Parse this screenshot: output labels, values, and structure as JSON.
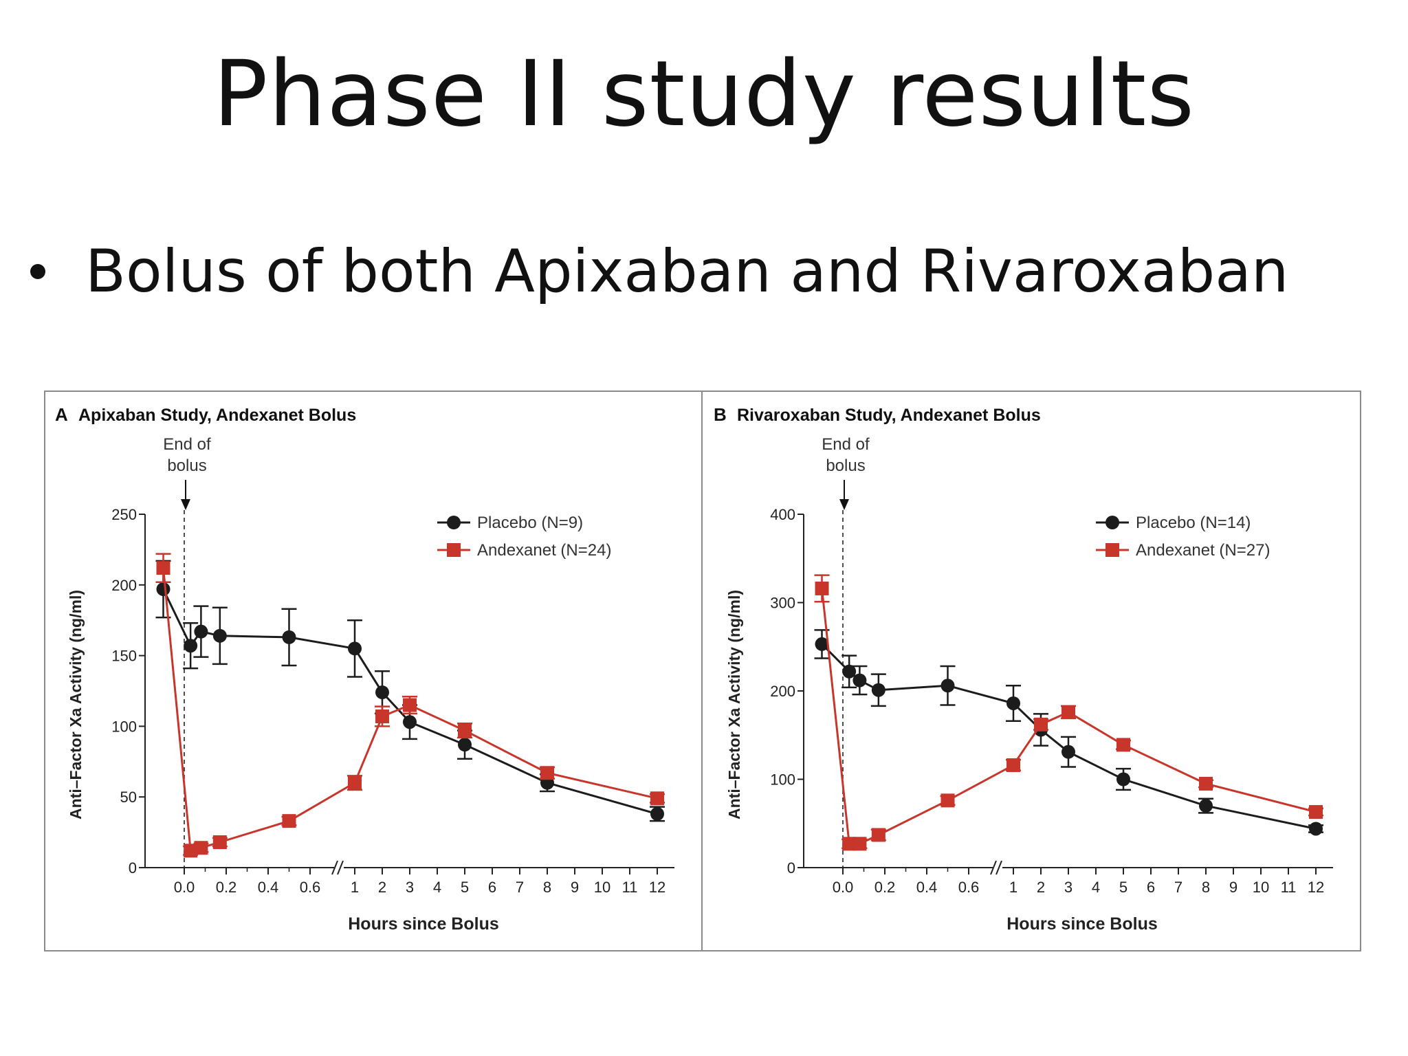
{
  "slide": {
    "title": "Phase II study results",
    "bullet": "Bolus of both Apixaban and Rivaroxaban"
  },
  "colors": {
    "placebo": "#1c1c1c",
    "andexanet": "#c8352b",
    "axis": "#222222",
    "frame": "#8a8a8a"
  },
  "chart_data": [
    {
      "type": "line",
      "panel_letter": "A",
      "title": "Apixaban Study, Andexanet Bolus",
      "annotation": "End of bolus",
      "annotation_lines": [
        "End of",
        "bolus"
      ],
      "xlabel": "Hours since Bolus",
      "ylabel": "Anti–Factor Xa Activity (ng/ml)",
      "ylim": [
        0,
        250
      ],
      "yticks": [
        0,
        50,
        100,
        150,
        200,
        250
      ],
      "xtick_labels": [
        "0.0",
        "0.2",
        "0.4",
        "0.6",
        "1",
        "2",
        "3",
        "4",
        "5",
        "6",
        "7",
        "8",
        "9",
        "10",
        "11",
        "12"
      ],
      "xtick_hours": [
        0,
        0.2,
        0.4,
        0.6,
        1,
        2,
        3,
        4,
        5,
        6,
        7,
        8,
        9,
        10,
        11,
        12
      ],
      "axis_break_hours": 0.75,
      "legend_position": "top-right",
      "series": [
        {
          "name": "Placebo (N=9)",
          "marker": "circle",
          "x": [
            -0.1,
            0.03,
            0.08,
            0.17,
            0.5,
            1,
            2,
            3,
            5,
            8,
            12
          ],
          "y": [
            197,
            157,
            167,
            164,
            163,
            155,
            124,
            103,
            87,
            60,
            38
          ],
          "err": [
            20,
            16,
            18,
            20,
            20,
            20,
            15,
            12,
            10,
            6,
            5
          ]
        },
        {
          "name": "Andexanet (N=24)",
          "marker": "square",
          "x": [
            -0.1,
            0.03,
            0.08,
            0.17,
            0.5,
            1,
            2,
            3,
            5,
            8,
            12
          ],
          "y": [
            212,
            12,
            14,
            18,
            33,
            60,
            107,
            115,
            97,
            67,
            49
          ],
          "err": [
            10,
            3,
            3,
            3,
            3,
            5,
            7,
            6,
            5,
            4,
            3
          ]
        }
      ]
    },
    {
      "type": "line",
      "panel_letter": "B",
      "title": "Rivaroxaban Study, Andexanet Bolus",
      "annotation": "End of bolus",
      "annotation_lines": [
        "End of",
        "bolus"
      ],
      "xlabel": "Hours since Bolus",
      "ylabel": "Anti–Factor Xa Activity (ng/ml)",
      "ylim": [
        0,
        400
      ],
      "yticks": [
        0,
        100,
        200,
        300,
        400
      ],
      "xtick_labels": [
        "0.0",
        "0.2",
        "0.4",
        "0.6",
        "1",
        "2",
        "3",
        "4",
        "5",
        "6",
        "7",
        "8",
        "9",
        "10",
        "11",
        "12"
      ],
      "xtick_hours": [
        0,
        0.2,
        0.4,
        0.6,
        1,
        2,
        3,
        4,
        5,
        6,
        7,
        8,
        9,
        10,
        11,
        12
      ],
      "axis_break_hours": 0.75,
      "legend_position": "top-right",
      "series": [
        {
          "name": "Placebo (N=14)",
          "marker": "circle",
          "x": [
            -0.1,
            0.03,
            0.08,
            0.17,
            0.5,
            1,
            2,
            3,
            5,
            8,
            12
          ],
          "y": [
            253,
            222,
            212,
            201,
            206,
            186,
            156,
            131,
            100,
            70,
            44
          ],
          "err": [
            16,
            18,
            16,
            18,
            22,
            20,
            18,
            17,
            12,
            8,
            4
          ]
        },
        {
          "name": "Andexanet (N=27)",
          "marker": "square",
          "x": [
            -0.1,
            0.03,
            0.08,
            0.17,
            0.5,
            1,
            2,
            3,
            5,
            8,
            12
          ],
          "y": [
            316,
            27,
            27,
            37,
            76,
            116,
            162,
            176,
            139,
            95,
            63
          ],
          "err": [
            15,
            5,
            5,
            6,
            5,
            6,
            6,
            7,
            5,
            4,
            4
          ]
        }
      ]
    }
  ]
}
